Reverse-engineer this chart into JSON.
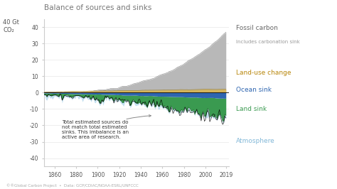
{
  "title": "Balance of sources and sinks",
  "xlabel_ticks": [
    1860,
    1880,
    1900,
    1920,
    1940,
    1960,
    1980,
    2000,
    2019
  ],
  "yticks": [
    -40,
    -30,
    -20,
    -10,
    0,
    10,
    20,
    30,
    40
  ],
  "ylim": [
    -45,
    45
  ],
  "xlim": [
    1850,
    2022
  ],
  "colors": {
    "fossil": "#b8b8b8",
    "land_use": "#d4b45a",
    "ocean": "#2e65b0",
    "land_sink": "#3a9a50",
    "atmosphere": "#c2dff0",
    "bg": "#ffffff"
  },
  "legend": {
    "fossil_label": "Fossil carbon",
    "fossil_sub": "Includes carbonation sink",
    "land_use_label": "Land-use change",
    "ocean_label": "Ocean sink",
    "land_sink_label": "Land sink",
    "atmosphere_label": "Atmosphere"
  },
  "annotation": "Total estimated sources do\nnot match total estimated\nsinks. This imbalance is an\nactive area of research.",
  "footer": "©®Global Carbon Project  •  Data: GCP/CDIAC/NOAA-ESRL/UNFCCC"
}
